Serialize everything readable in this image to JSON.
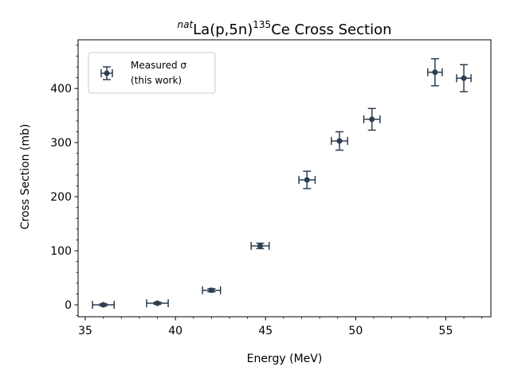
{
  "chart_data": {
    "type": "scatter",
    "title": {
      "sup1": "nat",
      "part1": "La(p,5n)",
      "sup2": "135",
      "part2": "Ce Cross Section"
    },
    "xlabel": "Energy (MeV)",
    "ylabel": "Cross Section (mb)",
    "xlim": [
      34.6,
      57.5
    ],
    "ylim": [
      -22,
      490
    ],
    "xticks": [
      35,
      40,
      45,
      50,
      55
    ],
    "yticks": [
      0,
      100,
      200,
      300,
      400
    ],
    "x_minor_step": 1,
    "y_minor_step": 20,
    "grid": false,
    "legend_position": "top-left",
    "series": [
      {
        "name_line1": "Measured σ",
        "name_line2": "(this work)",
        "color": "#2c3e50",
        "points": [
          {
            "x": 36.0,
            "y": 0,
            "xerr": 0.6,
            "yerr": 2
          },
          {
            "x": 39.0,
            "y": 3,
            "xerr": 0.6,
            "yerr": 2
          },
          {
            "x": 42.0,
            "y": 27,
            "xerr": 0.5,
            "yerr": 3
          },
          {
            "x": 44.7,
            "y": 109,
            "xerr": 0.5,
            "yerr": 5
          },
          {
            "x": 47.3,
            "y": 231,
            "xerr": 0.45,
            "yerr": 16
          },
          {
            "x": 49.1,
            "y": 303,
            "xerr": 0.45,
            "yerr": 17
          },
          {
            "x": 50.9,
            "y": 343,
            "xerr": 0.45,
            "yerr": 20
          },
          {
            "x": 54.4,
            "y": 430,
            "xerr": 0.4,
            "yerr": 25
          },
          {
            "x": 56.0,
            "y": 419,
            "xerr": 0.4,
            "yerr": 25
          }
        ]
      }
    ]
  }
}
